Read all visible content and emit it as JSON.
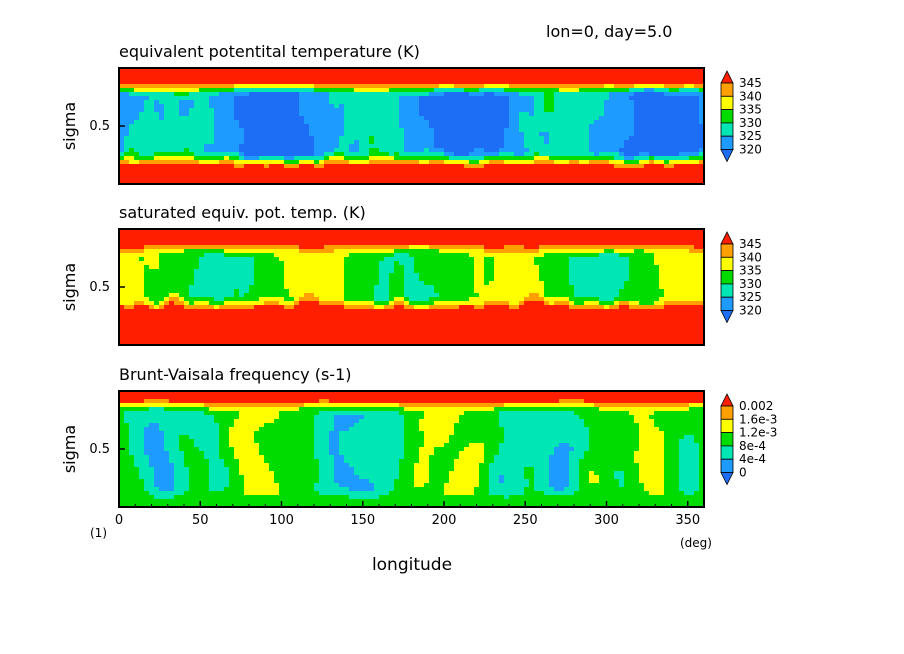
{
  "header": {
    "info": "lon=0, day=5.0"
  },
  "colors": {
    "c_lt": "#1e6ef5",
    "c1": "#1e9bff",
    "c2": "#00e6b4",
    "c3": "#00dc00",
    "c4": "#ffff00",
    "c5": "#ffa000",
    "c_gt": "#ff1e00",
    "frame": "#000000"
  },
  "chart_data": [
    {
      "type": "heatmap",
      "title": "equivalent potentital temperature (K)",
      "ylabel": "sigma",
      "yticks": [
        "0.5"
      ],
      "colorbar_labels": [
        "320",
        "325",
        "330",
        "335",
        "340",
        "345"
      ],
      "levels": [
        320,
        325,
        330,
        335,
        340,
        345
      ],
      "field": {
        "min_mid": 322,
        "min_mid_amp": 6,
        "bottom_value": 352,
        "top_value": 352,
        "bottom_layer": 0.22,
        "top_layer": 0.85,
        "texture": 4,
        "seed": 1
      }
    },
    {
      "type": "heatmap",
      "title": "saturated equiv. pot. temp. (K)",
      "ylabel": "sigma",
      "yticks": [
        "0.5"
      ],
      "colorbar_labels": [
        "320",
        "325",
        "330",
        "335",
        "340",
        "345"
      ],
      "levels": [
        320,
        325,
        330,
        335,
        340,
        345
      ],
      "field": {
        "min_mid": 333,
        "min_mid_amp": 4,
        "bottom_value": 356,
        "top_value": 352,
        "bottom_layer": 0.35,
        "top_layer": 0.86,
        "texture": 3,
        "seed": 2
      }
    },
    {
      "type": "heatmap",
      "title": "Brunt-Vaisala frequency (s-1)",
      "ylabel": "sigma",
      "yticks": [
        "0.5"
      ],
      "xlabel": "longitude",
      "xunit": "(deg)",
      "xticks": [
        "0",
        "50",
        "100",
        "150",
        "200",
        "250",
        "300",
        "350"
      ],
      "xlim": [
        0,
        360
      ],
      "colorbar_labels": [
        "0",
        "4e-4",
        "8e-4",
        "1.2e-3",
        "1.6e-3",
        "0.002"
      ],
      "levels": [
        0,
        0.0004,
        0.0008,
        0.0012,
        0.0016,
        0.002
      ],
      "field": {
        "min_mid": 0.00085,
        "min_mid_amp": 0.0004,
        "bottom_value": 0.0011,
        "top_value": 0.0024,
        "bottom_layer": 0.12,
        "top_layer": 0.9,
        "texture": 0.00035,
        "seed": 3
      }
    }
  ],
  "footer": {
    "panel_number": "(1)"
  }
}
